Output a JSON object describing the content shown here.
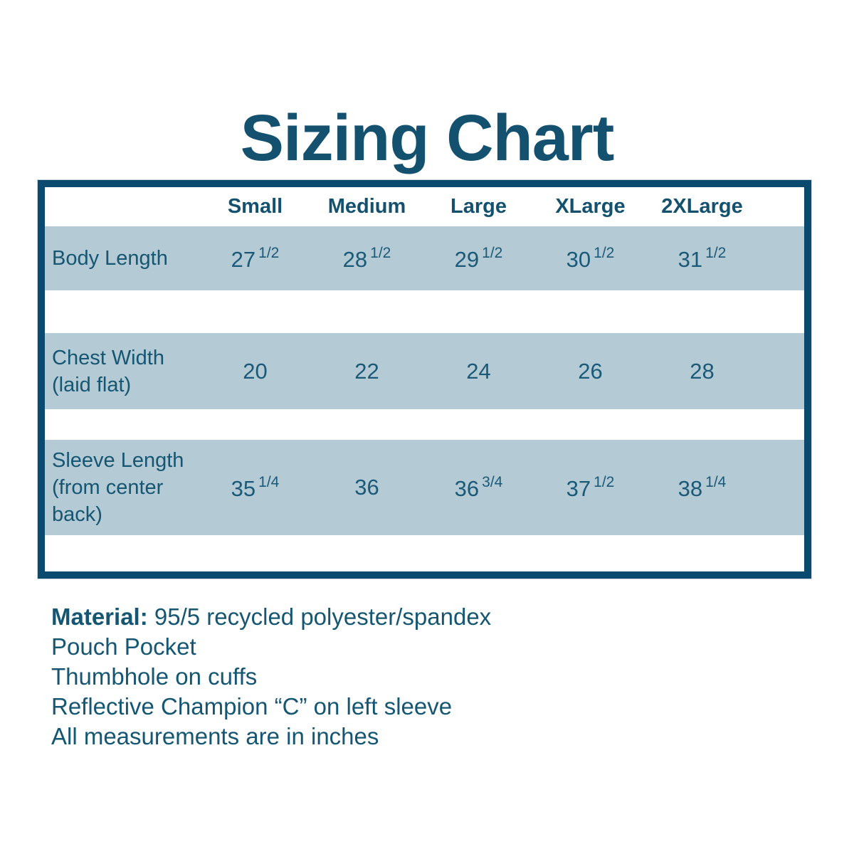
{
  "page": {
    "title": "Sizing Chart"
  },
  "colors": {
    "text": "#155673",
    "title": "#14516f",
    "table_border": "#0b4a6f",
    "row_background": "#b4cad5",
    "background": "#ffffff"
  },
  "table": {
    "columns": [
      {
        "label": "Small"
      },
      {
        "label": "Medium"
      },
      {
        "label": "Large"
      },
      {
        "label": "XLarge"
      },
      {
        "label": "2XLarge"
      }
    ],
    "rows": [
      {
        "label_lines": [
          "Body Length"
        ],
        "values": [
          {
            "main": "27",
            "frac": "1/2"
          },
          {
            "main": "28",
            "frac": "1/2"
          },
          {
            "main": "29",
            "frac": "1/2"
          },
          {
            "main": "30",
            "frac": "1/2"
          },
          {
            "main": "31",
            "frac": "1/2"
          }
        ]
      },
      {
        "label_lines": [
          "Chest Width",
          "(laid flat)"
        ],
        "values": [
          {
            "main": "20"
          },
          {
            "main": "22"
          },
          {
            "main": "24"
          },
          {
            "main": "26"
          },
          {
            "main": "28"
          }
        ]
      },
      {
        "label_lines": [
          "Sleeve Length",
          "(from center",
          "back)"
        ],
        "values": [
          {
            "main": "35",
            "frac": "1/4"
          },
          {
            "main": "36"
          },
          {
            "main": "36",
            "frac": "3/4"
          },
          {
            "main": "37",
            "frac": "1/2"
          },
          {
            "main": "38",
            "frac": "1/4"
          }
        ]
      }
    ]
  },
  "notes": {
    "material_label": "Material:",
    "material_text": " 95/5 recycled polyester/spandex",
    "lines": [
      "Pouch Pocket",
      "Thumbhole on cuffs",
      "Reflective Champion “C” on left sleeve",
      "All measurements are in inches"
    ]
  },
  "chart_data": {
    "type": "table",
    "title": "Sizing Chart",
    "columns": [
      "Small",
      "Medium",
      "Large",
      "XLarge",
      "2XLarge"
    ],
    "row_headers": [
      "Body Length",
      "Chest Width (laid flat)",
      "Sleeve Length (from center back)"
    ],
    "values": [
      [
        "27 1/2",
        "28 1/2",
        "29 1/2",
        "30 1/2",
        "31 1/2"
      ],
      [
        "20",
        "22",
        "24",
        "26",
        "28"
      ],
      [
        "35 1/4",
        "36",
        "36 3/4",
        "37 1/2",
        "38 1/4"
      ]
    ],
    "units": "inches",
    "notes": [
      "Material: 95/5 recycled polyester/spandex",
      "Pouch Pocket",
      "Thumbhole on cuffs",
      "Reflective Champion “C” on left sleeve",
      "All measurements are in inches"
    ]
  }
}
